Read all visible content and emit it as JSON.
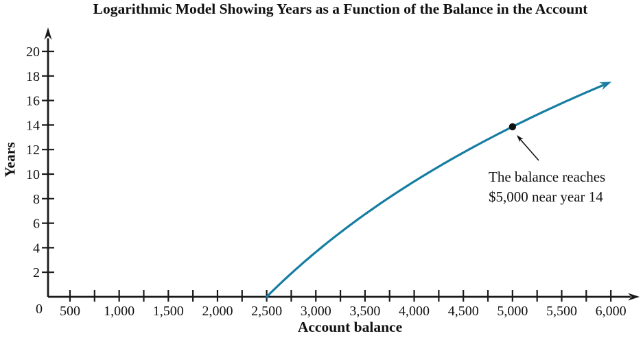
{
  "colors": {
    "background": "#ffffff",
    "axis": "#1a1a1a",
    "text": "#111111",
    "curve": "#167da2",
    "point": "#111111"
  },
  "chart_data": {
    "type": "line",
    "title": "Logarithmic Model Showing Years as a Function of the Balance in the Account",
    "xlabel": "Account balance",
    "ylabel": "Years",
    "origin_label": "0",
    "x_ticks": [
      500,
      1000,
      1500,
      2000,
      2500,
      3000,
      3500,
      4000,
      4500,
      5000,
      5500,
      6000
    ],
    "x_tick_labels": [
      "500",
      "1,000",
      "1,500",
      "2,000",
      "2,500",
      "3,000",
      "3,500",
      "4,000",
      "4,500",
      "5,000",
      "5,500",
      "6,000"
    ],
    "x_minor_tick_step": 250,
    "y_ticks": [
      2,
      4,
      6,
      8,
      10,
      12,
      14,
      16,
      18,
      20
    ],
    "y_tick_labels": [
      "2",
      "4",
      "6",
      "8",
      "10",
      "12",
      "14",
      "16",
      "18",
      "20"
    ],
    "xlim": [
      0,
      6300
    ],
    "ylim": [
      0,
      21.5
    ],
    "grid": false,
    "legend": "none",
    "curve": {
      "model": "y = 20·ln(x/2500)",
      "a": 20,
      "x0": 2500,
      "x_start": 2500,
      "x_end": 6000,
      "arrow_end": true
    },
    "sample_points": [
      {
        "x": 2500,
        "y": 0
      },
      {
        "x": 3000,
        "y": 3.65
      },
      {
        "x": 3500,
        "y": 6.73
      },
      {
        "x": 4000,
        "y": 9.4
      },
      {
        "x": 4500,
        "y": 11.76
      },
      {
        "x": 5000,
        "y": 13.86
      },
      {
        "x": 5500,
        "y": 15.77
      },
      {
        "x": 6000,
        "y": 17.51
      }
    ],
    "point": {
      "x": 5000,
      "y": 13.86
    },
    "annotation": {
      "line1": "The balance reaches",
      "line2": "$5,000 near year 14"
    }
  }
}
